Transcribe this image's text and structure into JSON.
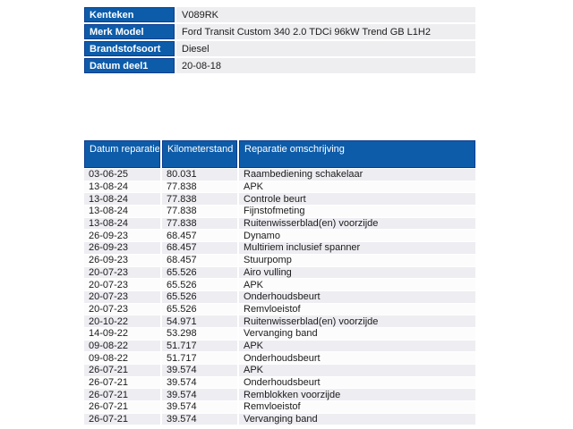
{
  "colors": {
    "header_blue": "#0d5caa",
    "header_border": "#0a3d8f",
    "row_alt": "#ededf2",
    "row_even": "#fcfcfd",
    "info_value_bg": "#eeeef1",
    "text": "#1b1b1b"
  },
  "vehicle_info": {
    "rows": [
      {
        "label": "Kenteken",
        "value": "V089RK"
      },
      {
        "label": "Merk Model",
        "value": "Ford Transit Custom 340 2.0 TDCi 96kW Trend GB L1H2"
      },
      {
        "label": "Brandstofsoort",
        "value": "Diesel"
      },
      {
        "label": "Datum deel1",
        "value": "20-08-18"
      }
    ]
  },
  "repair_table": {
    "columns": [
      "Datum reparatie",
      "Kilometerstand",
      "Reparatie omschrijving"
    ],
    "rows": [
      [
        "03-06-25",
        "80.031",
        "Raambediening schakelaar"
      ],
      [
        "13-08-24",
        "77.838",
        "APK"
      ],
      [
        "13-08-24",
        "77.838",
        "Controle beurt"
      ],
      [
        "13-08-24",
        "77.838",
        "Fijnstofmeting"
      ],
      [
        "13-08-24",
        "77.838",
        "Ruitenwisserblad(en) voorzijde"
      ],
      [
        "26-09-23",
        "68.457",
        "Dynamo"
      ],
      [
        "26-09-23",
        "68.457",
        "Multiriem inclusief spanner"
      ],
      [
        "26-09-23",
        "68.457",
        "Stuurpomp"
      ],
      [
        "20-07-23",
        "65.526",
        "Airo vulling"
      ],
      [
        "20-07-23",
        "65.526",
        "APK"
      ],
      [
        "20-07-23",
        "65.526",
        "Onderhoudsbeurt"
      ],
      [
        "20-07-23",
        "65.526",
        "Remvloeistof"
      ],
      [
        "20-10-22",
        "54.971",
        "Ruitenwisserblad(en) voorzijde"
      ],
      [
        "14-09-22",
        "53.298",
        "Vervanging band"
      ],
      [
        "09-08-22",
        "51.717",
        "APK"
      ],
      [
        "09-08-22",
        "51.717",
        "Onderhoudsbeurt"
      ],
      [
        "26-07-21",
        "39.574",
        "APK"
      ],
      [
        "26-07-21",
        "39.574",
        "Onderhoudsbeurt"
      ],
      [
        "26-07-21",
        "39.574",
        "Remblokken voorzijde"
      ],
      [
        "26-07-21",
        "39.574",
        "Remvloeistof"
      ],
      [
        "26-07-21",
        "39.574",
        "Vervanging band"
      ]
    ]
  }
}
